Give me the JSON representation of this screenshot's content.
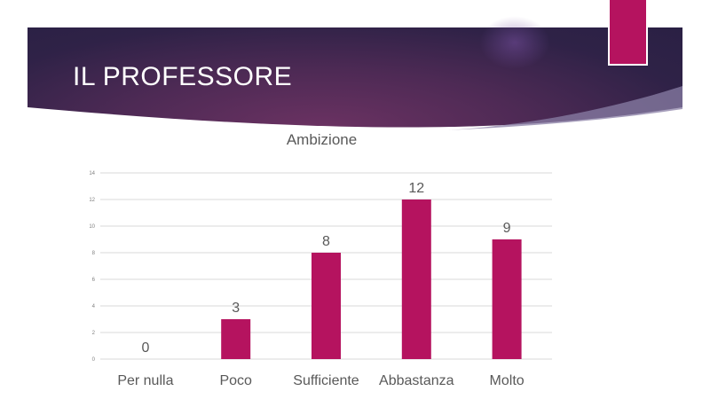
{
  "slide": {
    "title": "IL PROFESSORE"
  },
  "colors": {
    "accent": "#b5135f",
    "banner": "#4e2a55",
    "grid": "#d9d9d9",
    "text": "#595959"
  },
  "chart_data": {
    "type": "bar",
    "title": "Ambizione",
    "categories": [
      "Per nulla",
      "Poco",
      "Sufficiente",
      "Abbastanza",
      "Molto"
    ],
    "values": [
      0,
      3,
      8,
      12,
      9
    ],
    "ylim": [
      0,
      14
    ],
    "yticks": [
      0,
      2,
      4,
      6,
      8,
      10,
      12,
      14
    ],
    "xlabel": "",
    "ylabel": "",
    "grid": true,
    "legend": "none",
    "data_labels": true
  }
}
